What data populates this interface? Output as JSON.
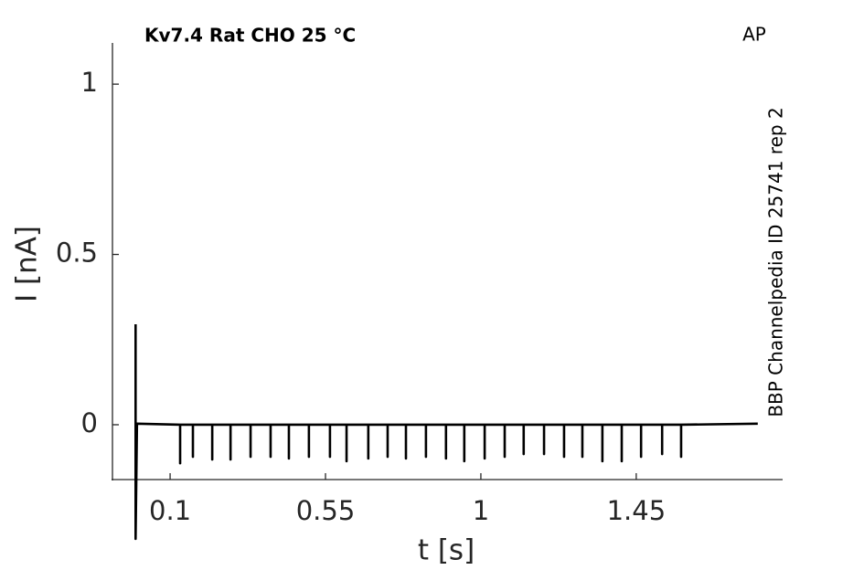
{
  "chart_data": {
    "type": "line",
    "title": "Kv7.4  Rat  CHO  25 °C",
    "annotation": "AP",
    "side_label": "BBP Channelpedia ID 25741 rep 2",
    "x_label": "t [s]",
    "y_label": "I [nA]",
    "color": "#000000",
    "xlim": [
      -0.067,
      1.874
    ],
    "ylim": [
      -0.161,
      1.121
    ],
    "xticks": [
      0.1,
      0.55,
      1,
      1.45
    ],
    "yticks": [
      0,
      0.5,
      1
    ],
    "grid": false,
    "x": [
      0,
      0,
      0.004,
      0.129,
      0.129,
      0.129,
      0.166,
      0.166,
      0.166,
      0.222,
      0.222,
      0.222,
      0.275,
      0.275,
      0.275,
      0.333,
      0.333,
      0.333,
      0.391,
      0.391,
      0.391,
      0.444,
      0.444,
      0.444,
      0.502,
      0.502,
      0.502,
      0.563,
      0.563,
      0.563,
      0.611,
      0.611,
      0.611,
      0.674,
      0.674,
      0.674,
      0.73,
      0.73,
      0.73,
      0.783,
      0.783,
      0.783,
      0.841,
      0.841,
      0.841,
      0.899,
      0.899,
      0.899,
      0.952,
      0.952,
      0.952,
      1.011,
      1.011,
      1.011,
      1.069,
      1.069,
      1.069,
      1.124,
      1.124,
      1.124,
      1.183,
      1.183,
      1.183,
      1.241,
      1.241,
      1.241,
      1.294,
      1.294,
      1.294,
      1.352,
      1.352,
      1.352,
      1.408,
      1.408,
      1.408,
      1.464,
      1.464,
      1.464,
      1.525,
      1.525,
      1.525,
      1.58,
      1.58,
      1.58,
      1.802
    ],
    "values": [
      0.295,
      -0.335,
      0.003,
      0,
      -0.113,
      0,
      0,
      -0.094,
      0,
      0,
      -0.102,
      0,
      0,
      -0.102,
      0,
      0,
      -0.094,
      0,
      0,
      -0.094,
      0,
      0,
      -0.099,
      0,
      0,
      -0.094,
      0,
      0,
      -0.094,
      0,
      0,
      -0.107,
      0,
      0,
      -0.099,
      0,
      0,
      -0.094,
      0,
      0,
      -0.099,
      0,
      0,
      -0.094,
      0,
      0,
      -0.099,
      0,
      0,
      -0.107,
      0,
      0,
      -0.099,
      0,
      0,
      -0.094,
      0,
      0,
      -0.086,
      0,
      0,
      -0.086,
      0,
      0,
      -0.094,
      0,
      0,
      -0.094,
      0,
      0,
      -0.107,
      0,
      0,
      -0.107,
      0,
      0,
      -0.094,
      0,
      0,
      -0.086,
      0,
      0,
      -0.094,
      0,
      0.003
    ]
  }
}
